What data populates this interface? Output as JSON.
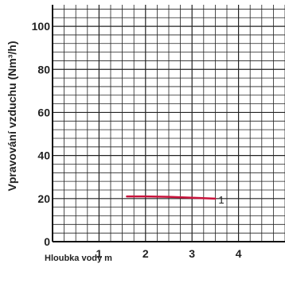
{
  "chart_data": {
    "type": "line",
    "ylabel": "Vpravování vzduchu (Nm³/h)",
    "xlabel": "Hloubka vody m",
    "xlim": [
      0,
      5
    ],
    "ylim": [
      0,
      110
    ],
    "xticks": [
      1,
      2,
      3,
      4
    ],
    "yticks": [
      0,
      20,
      40,
      60,
      80,
      100
    ],
    "x_minor_step": 0.25,
    "y_minor_step": 4,
    "grid": true,
    "series": [
      {
        "name": "1",
        "color": "#c8143c",
        "x": [
          1.6,
          2.0,
          2.5,
          3.0,
          3.5
        ],
        "y": [
          21,
          21,
          20.8,
          20.4,
          20
        ]
      }
    ]
  }
}
